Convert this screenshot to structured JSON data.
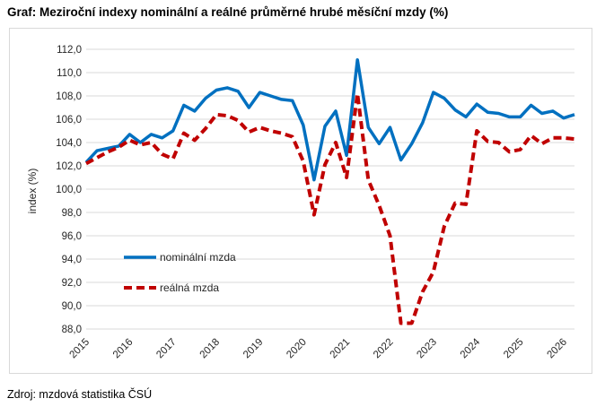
{
  "header": {
    "title": "Graf: Meziroční indexy nominální a reálné průměrné hrubé měsíční mzdy (%)"
  },
  "footer": {
    "source": "Zdroj: mzdová statistika ČSÚ"
  },
  "chart_data": {
    "type": "line",
    "title": "Graf: Meziroční indexy nominální a reálné průměrné hrubé měsíční mzdy (%)",
    "xlabel": "",
    "ylabel": "index (%)",
    "ylim": [
      88.0,
      112.0
    ],
    "y_ticks": [
      "88,0",
      "90,0",
      "92,0",
      "94,0",
      "96,0",
      "98,0",
      "100,0",
      "102,0",
      "104,0",
      "106,0",
      "108,0",
      "110,0",
      "112,0"
    ],
    "x_ticks": [
      "2015",
      "2016",
      "2017",
      "2018",
      "2019",
      "2020",
      "2021",
      "2022",
      "2023",
      "2024",
      "2025",
      "2026"
    ],
    "x_range": [
      2015.0,
      2026.25
    ],
    "grid": "horizontal",
    "legend_position": "left-bottom",
    "series": [
      {
        "name": "nominální mzda",
        "color": "#0070c0",
        "style": "solid",
        "x": [
          2015.0,
          2015.25,
          2015.5,
          2015.75,
          2016.0,
          2016.25,
          2016.5,
          2016.75,
          2017.0,
          2017.25,
          2017.5,
          2017.75,
          2018.0,
          2018.25,
          2018.5,
          2018.75,
          2019.0,
          2019.25,
          2019.5,
          2019.75,
          2020.0,
          2020.25,
          2020.5,
          2020.75,
          2021.0,
          2021.25,
          2021.5,
          2021.75,
          2022.0,
          2022.25,
          2022.5,
          2022.75,
          2023.0,
          2023.25,
          2023.5,
          2023.75,
          2024.0,
          2024.25,
          2024.5,
          2024.75,
          2025.0,
          2025.25,
          2025.5,
          2025.75,
          2026.0,
          2026.25
        ],
        "values": [
          102.3,
          103.3,
          103.5,
          103.7,
          104.7,
          104.0,
          104.7,
          104.4,
          105.0,
          107.2,
          106.7,
          107.8,
          108.5,
          108.7,
          108.4,
          107.0,
          108.3,
          108.0,
          107.7,
          107.6,
          105.5,
          100.8,
          105.4,
          106.7,
          102.9,
          111.1,
          105.3,
          103.9,
          105.3,
          102.5,
          103.9,
          105.7,
          108.3,
          107.8,
          106.8,
          106.2,
          107.3,
          106.6,
          106.5,
          106.2,
          106.2,
          107.2,
          106.5,
          106.7,
          106.1,
          106.4
        ]
      },
      {
        "name": "reálná mzda",
        "color": "#c00000",
        "style": "dashed",
        "x": [
          2015.0,
          2015.25,
          2015.5,
          2015.75,
          2016.0,
          2016.25,
          2016.5,
          2016.75,
          2017.0,
          2017.25,
          2017.5,
          2017.75,
          2018.0,
          2018.25,
          2018.5,
          2018.75,
          2019.0,
          2019.25,
          2019.5,
          2019.75,
          2020.0,
          2020.25,
          2020.5,
          2020.75,
          2021.0,
          2021.25,
          2021.5,
          2021.75,
          2022.0,
          2022.25,
          2022.5,
          2022.75,
          2023.0,
          2023.25,
          2023.5,
          2023.75,
          2024.0,
          2024.25,
          2024.5,
          2024.75,
          2025.0,
          2025.25,
          2025.5,
          2025.75,
          2026.0,
          2026.25
        ],
        "values": [
          102.2,
          102.7,
          103.2,
          103.6,
          104.2,
          103.8,
          104.0,
          103.0,
          102.6,
          104.8,
          104.2,
          105.2,
          106.4,
          106.3,
          105.9,
          104.9,
          105.3,
          105.0,
          104.8,
          104.5,
          102.4,
          97.8,
          102.1,
          104.0,
          101.0,
          108.2,
          100.8,
          98.6,
          96.0,
          88.5,
          88.5,
          91.2,
          92.9,
          96.8,
          98.8,
          98.7,
          105.0,
          104.1,
          104.0,
          103.2,
          103.4,
          104.6,
          103.9,
          104.4,
          104.4,
          104.3
        ]
      }
    ]
  }
}
